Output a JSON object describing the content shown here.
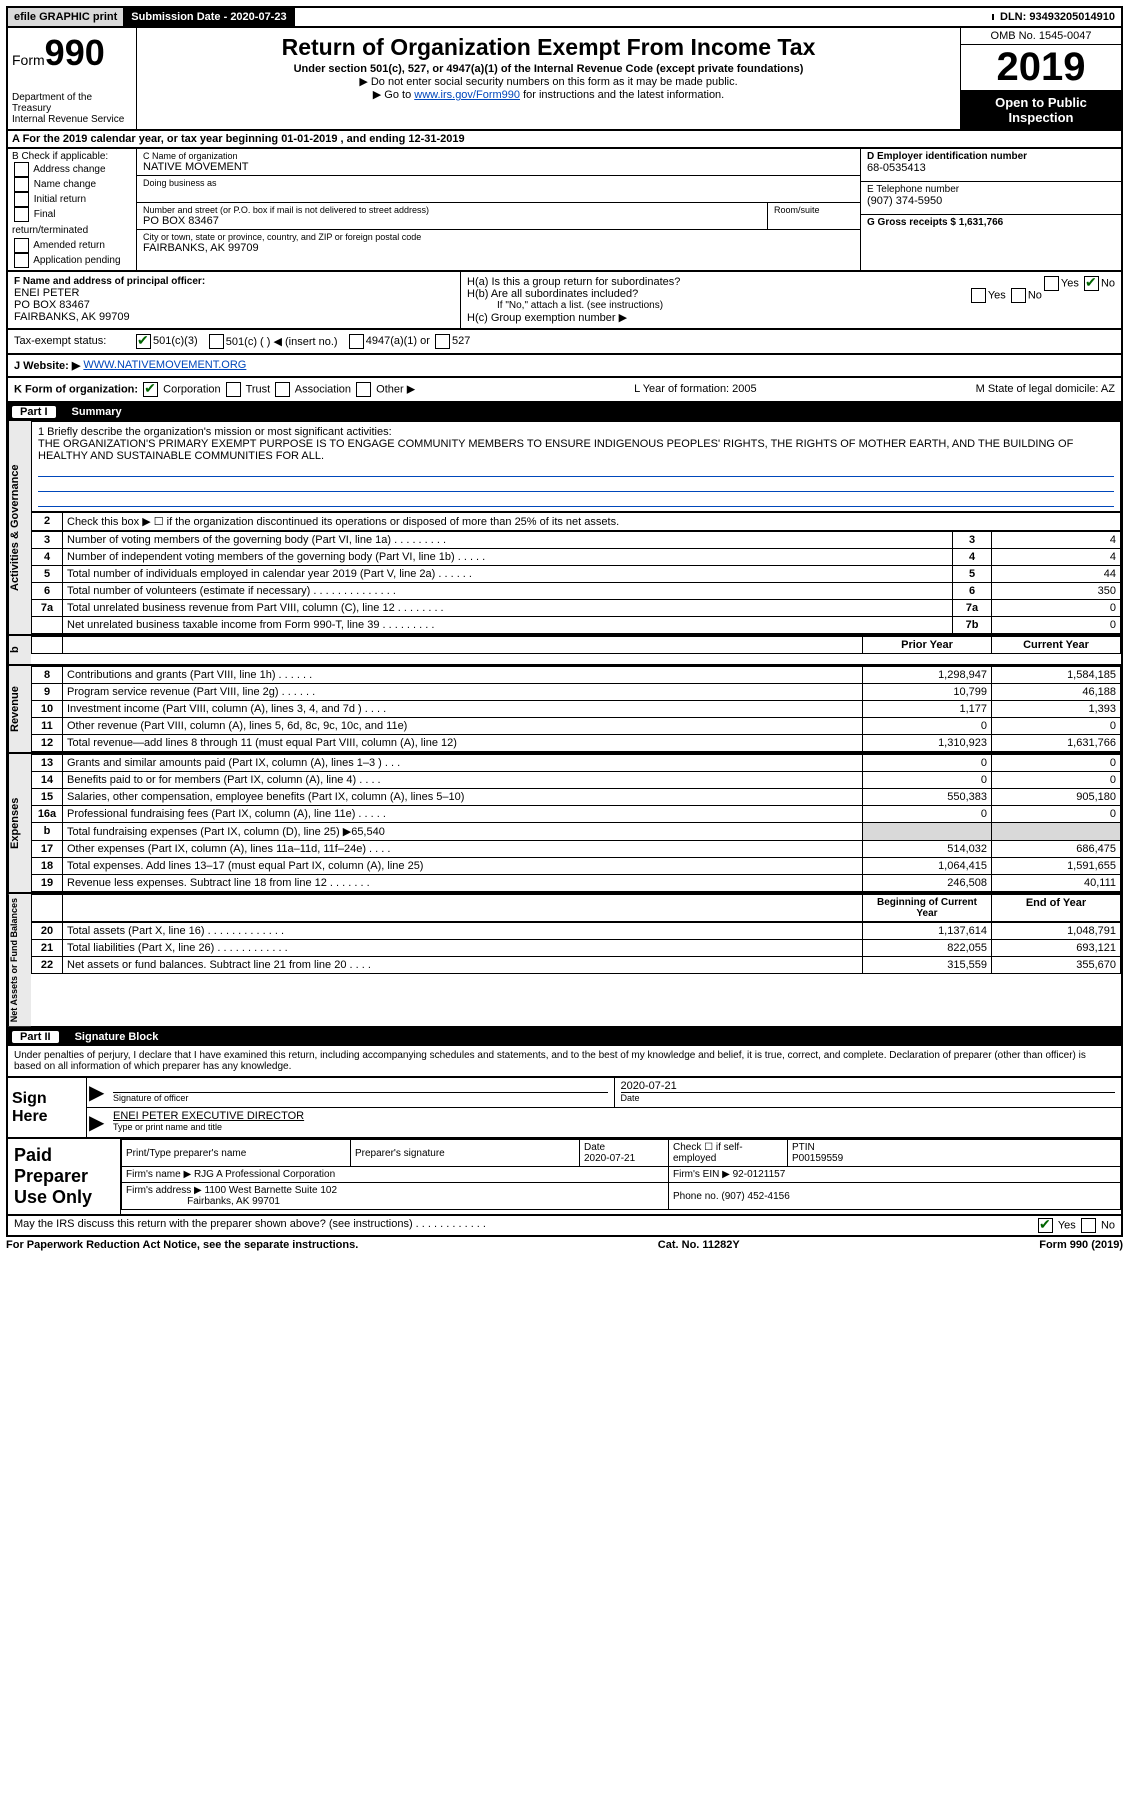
{
  "top": {
    "efile": "efile GRAPHIC print",
    "sub_label": "Submission Date - 2020-07-23",
    "dln": "DLN: 93493205014910"
  },
  "header": {
    "form": "Form",
    "form_num": "990",
    "dept": "Department of the Treasury\nInternal Revenue Service",
    "title": "Return of Organization Exempt From Income Tax",
    "sub": "Under section 501(c), 527, or 4947(a)(1) of the Internal Revenue Code (except private foundations)",
    "line1": "▶ Do not enter social security numbers on this form as it may be made public.",
    "line2_pre": "▶ Go to ",
    "line2_link": "www.irs.gov/Form990",
    "line2_post": " for instructions and the latest information.",
    "omb": "OMB No. 1545-0047",
    "year": "2019",
    "open": "Open to Public Inspection"
  },
  "rowA": "A   For the 2019 calendar year, or tax year beginning 01-01-2019    , and ending 12-31-2019",
  "blockB": {
    "label": "B Check if applicable:",
    "opts": [
      "Address change",
      "Name change",
      "Initial return",
      "Final return/terminated",
      "Amended return",
      "Application pending"
    ],
    "c_label": "C Name of organization",
    "c_val": "NATIVE MOVEMENT",
    "dba": "Doing business as",
    "addr_label": "Number and street (or P.O. box if mail is not delivered to street address)",
    "room": "Room/suite",
    "addr_val": "PO BOX 83467",
    "city_label": "City or town, state or province, country, and ZIP or foreign postal code",
    "city_val": "FAIRBANKS, AK  99709",
    "d_label": "D Employer identification number",
    "d_val": "68-0535413",
    "e_label": "E Telephone number",
    "e_val": "(907) 374-5950",
    "g_label": "G Gross receipts $ 1,631,766"
  },
  "officer": {
    "f_label": "F  Name and address of principal officer:",
    "name": "ENEI PETER",
    "addr1": "PO BOX 83467",
    "addr2": "FAIRBANKS, AK  99709",
    "ha": "H(a)  Is this a group return for subordinates?",
    "hb": "H(b)  Are all subordinates included?",
    "hb_note": "If \"No,\" attach a list. (see instructions)",
    "hc": "H(c)  Group exemption number ▶",
    "yes": "Yes",
    "no": "No"
  },
  "tax_status": {
    "label": "Tax-exempt status:",
    "opt1": "501(c)(3)",
    "opt2": "501(c) (   ) ◀ (insert no.)",
    "opt3": "4947(a)(1) or",
    "opt4": "527"
  },
  "website": {
    "label": "J    Website: ▶",
    "val": "WWW.NATIVEMOVEMENT.ORG"
  },
  "org_form": {
    "k": "K Form of organization:",
    "corp": "Corporation",
    "trust": "Trust",
    "assoc": "Association",
    "other": "Other ▶",
    "l": "L Year of formation: 2005",
    "m": "M State of legal domicile: AZ"
  },
  "part1": {
    "header_num": "Part I",
    "header_txt": "Summary",
    "line1_label": "1  Briefly describe the organization's mission or most significant activities:",
    "mission": "THE ORGANIZATION'S PRIMARY EXEMPT PURPOSE IS TO ENGAGE COMMUNITY MEMBERS TO ENSURE INDIGENOUS PEOPLES' RIGHTS, THE RIGHTS OF MOTHER EARTH, AND THE BUILDING OF HEALTHY AND SUSTAINABLE COMMUNITIES FOR ALL.",
    "line2": "Check this box ▶ ☐  if the organization discontinued its operations or disposed of more than 25% of its net assets.",
    "rows_ag": [
      {
        "n": "3",
        "t": "Number of voting members of the governing body (Part VI, line 1a)   .   .   .   .   .   .   .   .   .",
        "b": "3",
        "v": "4"
      },
      {
        "n": "4",
        "t": "Number of independent voting members of the governing body (Part VI, line 1b)   .   .   .   .   .",
        "b": "4",
        "v": "4"
      },
      {
        "n": "5",
        "t": "Total number of individuals employed in calendar year 2019 (Part V, line 2a)   .   .   .   .   .   .",
        "b": "5",
        "v": "44"
      },
      {
        "n": "6",
        "t": "Total number of volunteers (estimate if necessary)   .   .   .   .   .   .   .   .   .   .   .   .   .   .",
        "b": "6",
        "v": "350"
      },
      {
        "n": "7a",
        "t": "Total unrelated business revenue from Part VIII, column (C), line 12   .   .   .   .   .   .   .   .",
        "b": "7a",
        "v": "0"
      },
      {
        "n": "",
        "t": "Net unrelated business taxable income from Form 990-T, line 39   .   .   .   .   .   .   .   .   .",
        "b": "7b",
        "v": "0"
      }
    ],
    "col_prior": "Prior Year",
    "col_curr": "Current Year",
    "rev_rows": [
      {
        "n": "8",
        "t": "Contributions and grants (Part VIII, line 1h)   .   .   .   .   .   .",
        "p": "1,298,947",
        "c": "1,584,185"
      },
      {
        "n": "9",
        "t": "Program service revenue (Part VIII, line 2g)   .   .   .   .   .   .",
        "p": "10,799",
        "c": "46,188"
      },
      {
        "n": "10",
        "t": "Investment income (Part VIII, column (A), lines 3, 4, and 7d )   .   .   .   .",
        "p": "1,177",
        "c": "1,393"
      },
      {
        "n": "11",
        "t": "Other revenue (Part VIII, column (A), lines 5, 6d, 8c, 9c, 10c, and 11e)",
        "p": "0",
        "c": "0"
      },
      {
        "n": "12",
        "t": "Total revenue—add lines 8 through 11 (must equal Part VIII, column (A), line 12)",
        "p": "1,310,923",
        "c": "1,631,766"
      }
    ],
    "exp_rows": [
      {
        "n": "13",
        "t": "Grants and similar amounts paid (Part IX, column (A), lines 1–3 )   .   .   .",
        "p": "0",
        "c": "0"
      },
      {
        "n": "14",
        "t": "Benefits paid to or for members (Part IX, column (A), line 4)   .   .   .   .",
        "p": "0",
        "c": "0"
      },
      {
        "n": "15",
        "t": "Salaries, other compensation, employee benefits (Part IX, column (A), lines 5–10)",
        "p": "550,383",
        "c": "905,180"
      },
      {
        "n": "16a",
        "t": "Professional fundraising fees (Part IX, column (A), line 11e)   .   .   .   .   .",
        "p": "0",
        "c": "0"
      },
      {
        "n": "b",
        "t": "Total fundraising expenses (Part IX, column (D), line 25) ▶65,540",
        "p": "",
        "c": "",
        "shade": true
      },
      {
        "n": "17",
        "t": "Other expenses (Part IX, column (A), lines 11a–11d, 11f–24e)   .   .   .   .",
        "p": "514,032",
        "c": "686,475"
      },
      {
        "n": "18",
        "t": "Total expenses. Add lines 13–17 (must equal Part IX, column (A), line 25)",
        "p": "1,064,415",
        "c": "1,591,655"
      },
      {
        "n": "19",
        "t": "Revenue less expenses. Subtract line 18 from line 12   .   .   .   .   .   .   .",
        "p": "246,508",
        "c": "40,111"
      }
    ],
    "col_beg": "Beginning of Current Year",
    "col_end": "End of Year",
    "net_rows": [
      {
        "n": "20",
        "t": "Total assets (Part X, line 16)   .   .   .   .   .   .   .   .   .   .   .   .   .",
        "p": "1,137,614",
        "c": "1,048,791"
      },
      {
        "n": "21",
        "t": "Total liabilities (Part X, line 26)   .   .   .   .   .   .   .   .   .   .   .   .",
        "p": "822,055",
        "c": "693,121"
      },
      {
        "n": "22",
        "t": "Net assets or fund balances. Subtract line 21 from line 20   .   .   .   .",
        "p": "315,559",
        "c": "355,670"
      }
    ],
    "side_ag": "Activities & Governance",
    "side_b": "b",
    "side_rev": "Revenue",
    "side_exp": "Expenses",
    "side_net": "Net Assets or Fund Balances"
  },
  "part2": {
    "header_num": "Part II",
    "header_txt": "Signature Block",
    "decl": "Under penalties of perjury, I declare that I have examined this return, including accompanying schedules and statements, and to the best of my knowledge and belief, it is true, correct, and complete. Declaration of preparer (other than officer) is based on all information of which preparer has any knowledge."
  },
  "sign": {
    "label": "Sign Here",
    "sig_of": "Signature of officer",
    "date": "Date",
    "date_val": "2020-07-21",
    "name": "ENEI PETER  EXECUTIVE DIRECTOR",
    "type_label": "Type or print name and title"
  },
  "prep": {
    "label": "Paid Preparer Use Only",
    "h1": "Print/Type preparer's name",
    "h2": "Preparer's signature",
    "h3": "Date",
    "h3v": "2020-07-21",
    "h4": "Check ☐ if self-employed",
    "h5": "PTIN",
    "h5v": "P00159559",
    "firm_name_l": "Firm's name    ▶",
    "firm_name": "RJG A Professional Corporation",
    "firm_ein_l": "Firm's EIN ▶",
    "firm_ein": "92-0121157",
    "firm_addr_l": "Firm's address ▶",
    "firm_addr1": "1100 West Barnette Suite 102",
    "firm_addr2": "Fairbanks, AK  99701",
    "phone_l": "Phone no.",
    "phone": "(907) 452-4156"
  },
  "footer": {
    "q": "May the IRS discuss this return with the preparer shown above? (see instructions)   .   .   .   .   .   .   .   .   .   .   .   .",
    "yes": "Yes",
    "no": "No",
    "pra": "For Paperwork Reduction Act Notice, see the separate instructions.",
    "cat": "Cat. No. 11282Y",
    "form": "Form 990 (2019)"
  }
}
